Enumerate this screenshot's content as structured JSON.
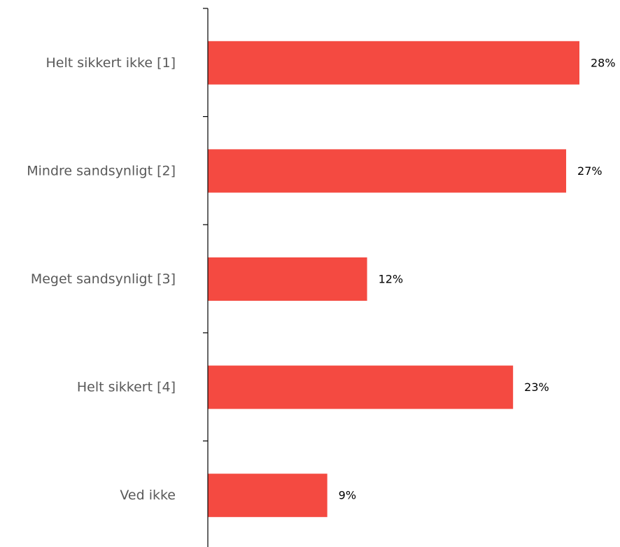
{
  "chart_data": {
    "type": "bar",
    "orientation": "horizontal",
    "categories": [
      "Helt sikkert ikke [1]",
      "Mindre sandsynligt [2]",
      "Meget sandsynligt [3]",
      "Helt sikkert [4]",
      "Ved ikke"
    ],
    "values": [
      28,
      27,
      12,
      23,
      9
    ],
    "value_labels": [
      "28%",
      "27%",
      "12%",
      "23%",
      "9%"
    ],
    "unit": "%",
    "xlim": [
      0,
      29.5
    ],
    "grid": false,
    "legend": "none",
    "title": "",
    "xlabel": "",
    "ylabel": ""
  },
  "colors": {
    "bar": "#f44a41",
    "category_text": "#595959",
    "value_text": "#000000",
    "axis": "#000000"
  }
}
